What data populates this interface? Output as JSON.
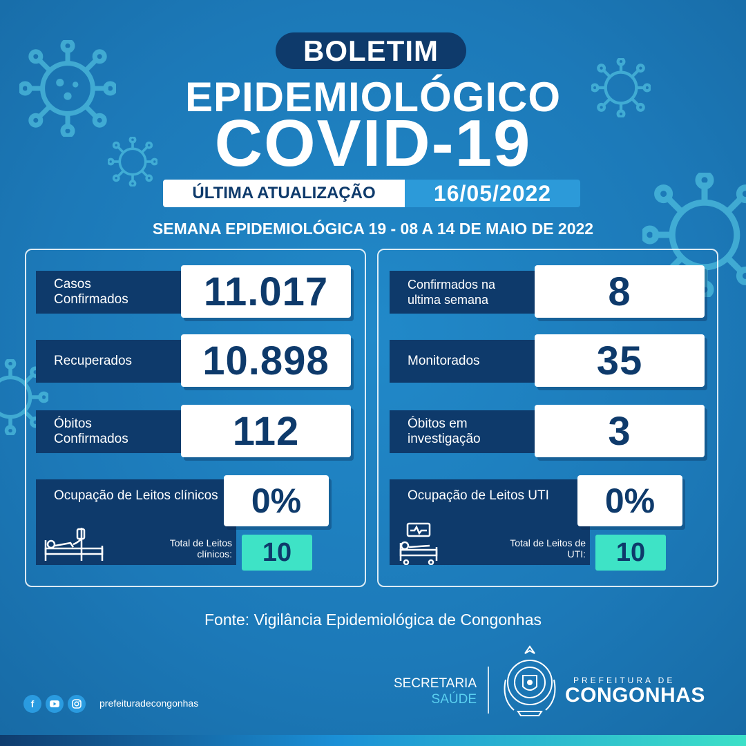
{
  "header": {
    "badge": "BOLETIM",
    "title": "EPIDEMIOLÓGICO",
    "subtitle": "COVID-19",
    "update_label": "ÚLTIMA ATUALIZAÇÃO",
    "update_date": "16/05/2022",
    "week": "SEMANA EPIDEMIOLÓGICA 19 - 08 A 14 DE MAIO DE 2022"
  },
  "left_panel": {
    "stats": [
      {
        "label": "Casos Confirmados",
        "value": "11.017"
      },
      {
        "label": "Recuperados",
        "value": "10.898"
      },
      {
        "label": "Óbitos Confirmados",
        "value": "112"
      }
    ],
    "occupancy": {
      "label": "Ocupação de Leitos clínicos",
      "value": "0%",
      "total_label": "Total de Leitos clínicos:",
      "total_value": "10",
      "icon": "hospital-bed-icon"
    }
  },
  "right_panel": {
    "stats": [
      {
        "label": "Confirmados na ultima semana",
        "value": "8"
      },
      {
        "label": "Monitorados",
        "value": "35"
      },
      {
        "label": "Óbitos em investigação",
        "value": "3"
      }
    ],
    "occupancy": {
      "label": "Ocupação de Leitos UTI",
      "value": "0%",
      "total_label": "Total de Leitos de UTI:",
      "total_value": "10",
      "icon": "icu-bed-monitor-icon"
    }
  },
  "source": "Fonte: Vigilância Epidemiológica de Congonhas",
  "footer": {
    "social_icons": [
      "facebook-icon",
      "youtube-icon",
      "instagram-icon"
    ],
    "handle": "prefeituradecongonhas",
    "secretaria_line1": "SECRETARIA",
    "secretaria_line2": "SAÚDE",
    "prefeitura_top": "PREFEITURA DE",
    "prefeitura_name": "CONGONHAS"
  },
  "colors": {
    "background": "#1f7fbd",
    "navy": "#0e3a6b",
    "accent_teal": "#3ee3c6",
    "date_blue": "#2c9ad9"
  }
}
